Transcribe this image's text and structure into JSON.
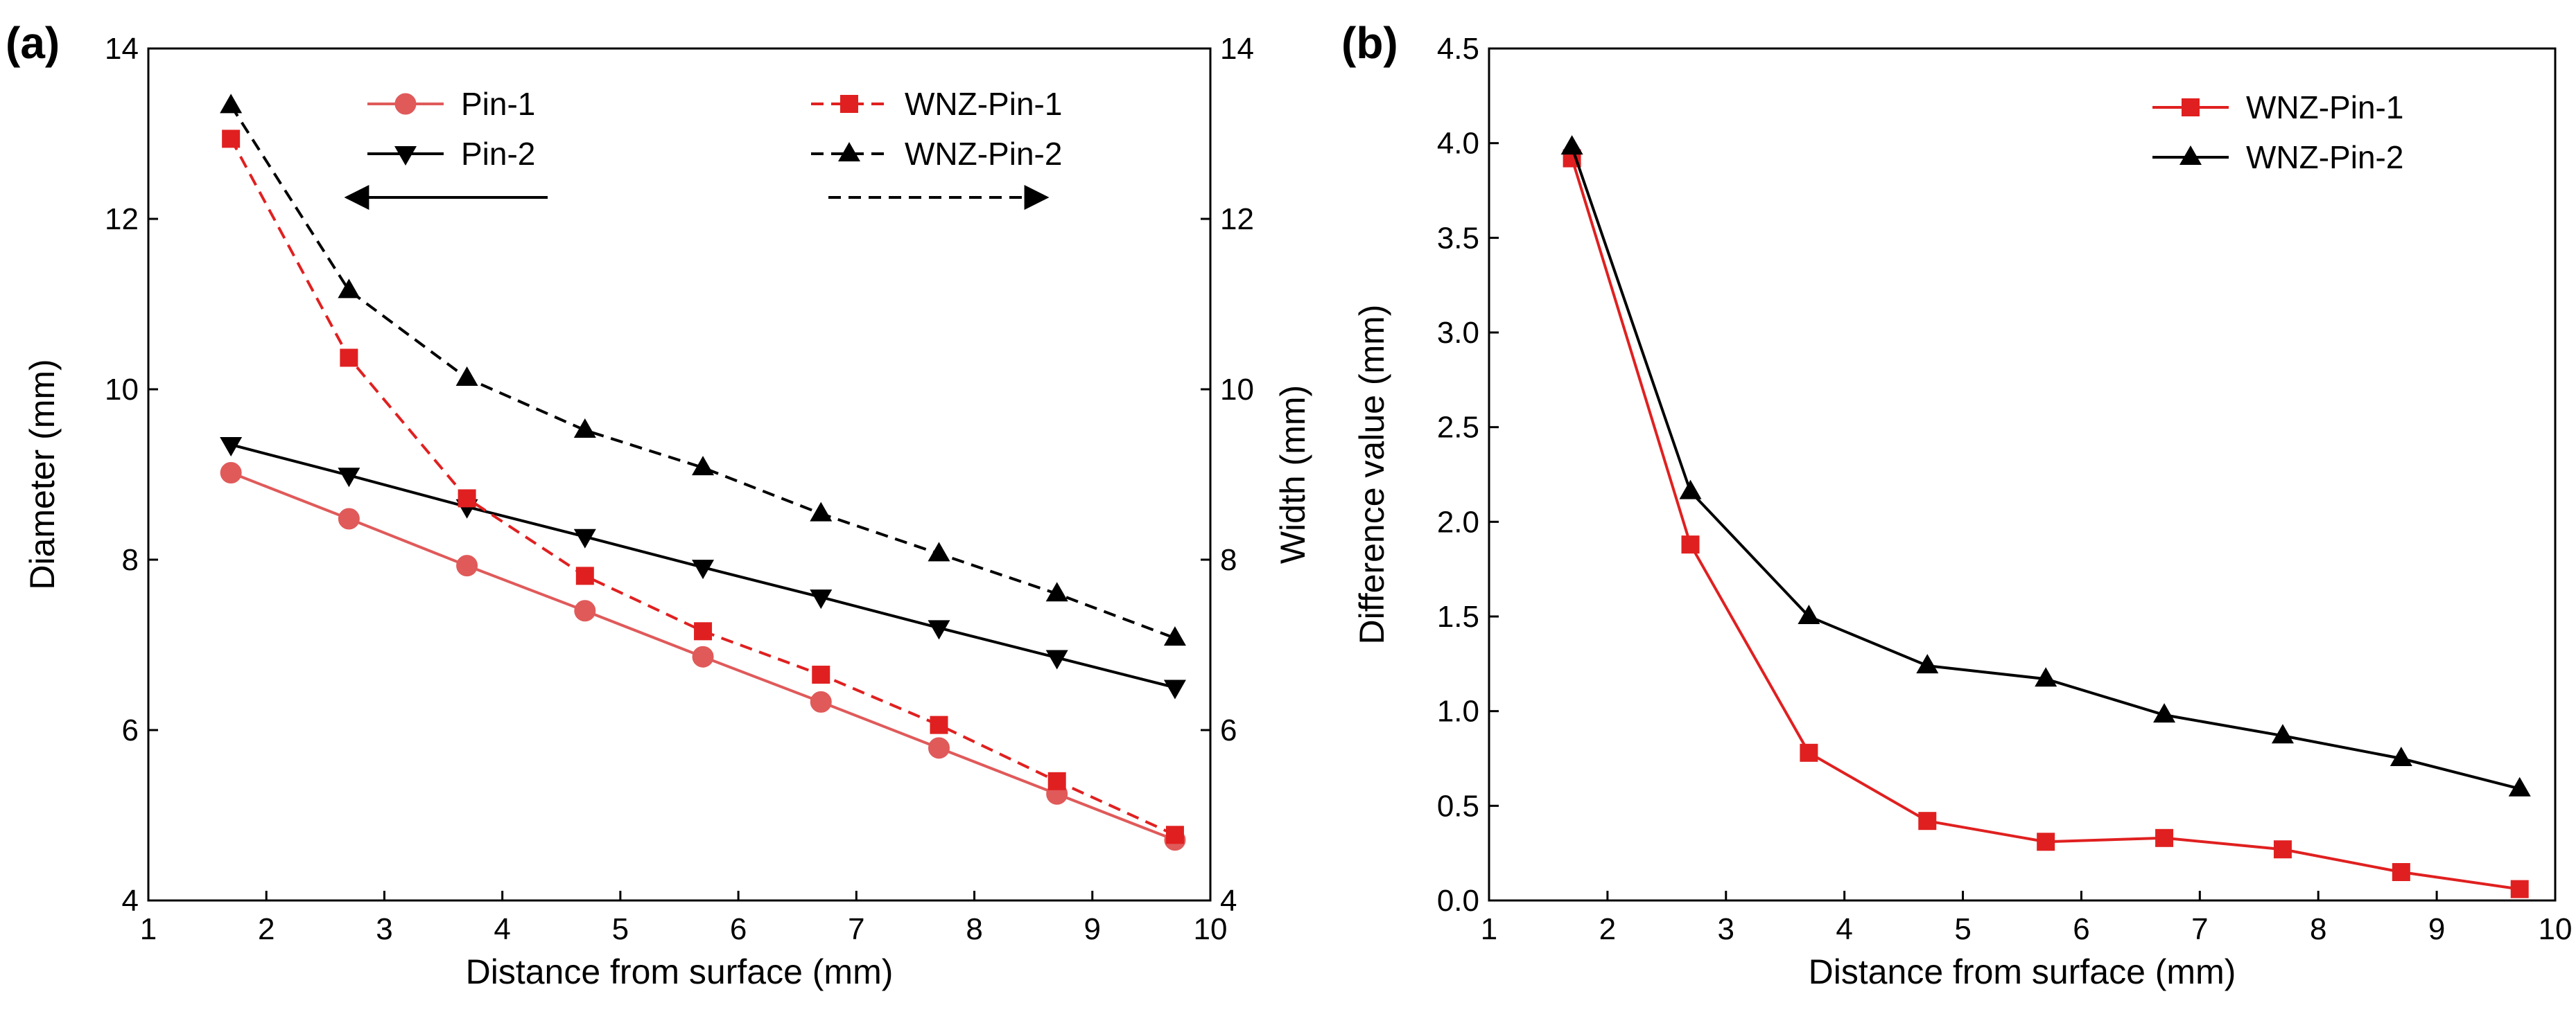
{
  "chart_data": [
    {
      "panel": "(a)",
      "type": "line",
      "xlabel": "Distance from surface (mm)",
      "ylabel_left": "Diameter (mm)",
      "ylabel_right": "Width (mm)",
      "xlim": [
        1,
        10
      ],
      "ylim_left": [
        4,
        14
      ],
      "ylim_right": [
        4,
        14
      ],
      "xticks": [
        "1",
        "2",
        "3",
        "4",
        "5",
        "6",
        "7",
        "8",
        "9",
        "10"
      ],
      "yticks_left": [
        "4",
        "6",
        "8",
        "10",
        "12",
        "14"
      ],
      "yticks_right": [
        "4",
        "6",
        "8",
        "10",
        "12",
        "14"
      ],
      "grid": false,
      "legend_placement": "top",
      "x": [
        1.7,
        2.7,
        3.7,
        4.7,
        5.7,
        6.7,
        7.7,
        8.7,
        9.7
      ],
      "series": [
        {
          "name": "Pin-1",
          "axis": "left",
          "color": "#e05a5a",
          "dash": "solid",
          "marker": "circle",
          "values": [
            9.02,
            8.48,
            7.93,
            7.4,
            6.86,
            6.33,
            5.79,
            5.25,
            4.71
          ]
        },
        {
          "name": "Pin-2",
          "axis": "left",
          "color": "#000000",
          "dash": "solid",
          "marker": "triangle-down",
          "values": [
            9.35,
            8.99,
            8.62,
            8.27,
            7.91,
            7.56,
            7.2,
            6.85,
            6.5
          ]
        },
        {
          "name": "WNZ-Pin-1",
          "axis": "right",
          "color": "#e02020",
          "dash": "dashed",
          "marker": "square",
          "values": [
            12.94,
            10.37,
            8.72,
            7.81,
            7.16,
            6.65,
            6.06,
            5.4,
            4.77
          ]
        },
        {
          "name": "WNZ-Pin-2",
          "axis": "right",
          "color": "#000000",
          "dash": "dashed",
          "marker": "triangle-up",
          "values": [
            13.33,
            11.16,
            10.13,
            9.52,
            9.08,
            8.54,
            8.07,
            7.6,
            7.08
          ]
        }
      ]
    },
    {
      "panel": "(b)",
      "type": "line",
      "xlabel": "Distance from surface (mm)",
      "ylabel": "Difference value (mm)",
      "xlim": [
        1,
        10
      ],
      "ylim": [
        0,
        4.5
      ],
      "xticks": [
        "1",
        "2",
        "3",
        "4",
        "5",
        "6",
        "7",
        "8",
        "9",
        "10"
      ],
      "yticks": [
        "0.0",
        "0.5",
        "1.0",
        "1.5",
        "2.0",
        "2.5",
        "3.0",
        "3.5",
        "4.0",
        "4.5"
      ],
      "grid": false,
      "legend_placement": "top-right",
      "x": [
        1.7,
        2.7,
        3.7,
        4.7,
        5.7,
        6.7,
        7.7,
        8.7,
        9.7
      ],
      "series": [
        {
          "name": "WNZ-Pin-1",
          "color": "#e02020",
          "dash": "solid",
          "marker": "square",
          "values": [
            3.92,
            1.88,
            0.78,
            0.42,
            0.31,
            0.33,
            0.27,
            0.15,
            0.06
          ]
        },
        {
          "name": "WNZ-Pin-2",
          "color": "#000000",
          "dash": "solid",
          "marker": "triangle-up",
          "values": [
            3.98,
            2.16,
            1.5,
            1.24,
            1.17,
            0.98,
            0.87,
            0.75,
            0.59
          ]
        }
      ]
    }
  ]
}
